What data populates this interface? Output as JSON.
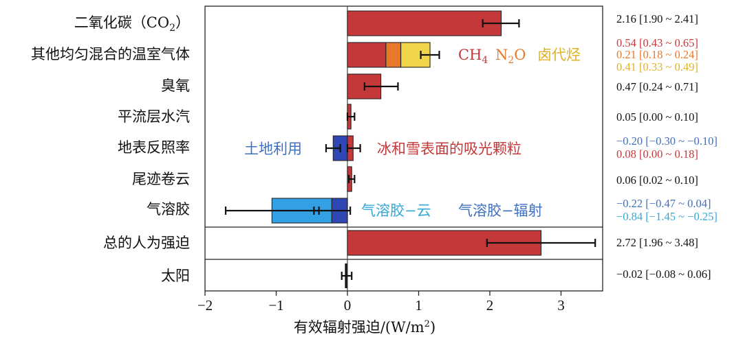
{
  "chart_data": {
    "type": "bar",
    "orientation": "horizontal",
    "xlabel": "有效辐射强迫/(W/m²)",
    "xlim": [
      -2,
      3.5
    ],
    "x_ticks": [
      -2,
      -1,
      0,
      1,
      2,
      3
    ],
    "x_tick_labels": [
      "−2",
      "−1",
      "0",
      "1",
      "2",
      "3"
    ],
    "colors": {
      "co2": "#c4383a",
      "ch4": "#c4383a",
      "n2o": "#e8792b",
      "halo": "#f0d44a",
      "ozone": "#c4383a",
      "strat": "#c4383a",
      "landuse": "#2f47b5",
      "snow": "#c4383a",
      "contrail": "#c4383a",
      "aer_cloud": "#2f47b5",
      "aer_rad": "#33a0e6",
      "total": "#c4383a",
      "solar": "#111111",
      "text_black": "#111111",
      "text_red": "#c4383a",
      "text_orange": "#e8792b",
      "text_yellow": "#dfb227",
      "text_blue": "#3f6fbf",
      "text_cyan": "#33a7d7"
    },
    "rows": [
      {
        "label": "二氧化碳(CO₂)",
        "values_text": [
          "2.16 [1.90 ~ 2.41]"
        ]
      },
      {
        "label": "其他均匀混合的温室气体",
        "values_text": [
          "0.54 [0.43 ~ 0.65]",
          "0.21 [0.18 ~ 0.24]",
          "0.41 [0.33 ~ 0.49]"
        ]
      },
      {
        "label": "臭氧",
        "values_text": [
          "0.47 [0.24 ~ 0.71]"
        ]
      },
      {
        "label": "平流层水汽",
        "values_text": [
          "0.05 [0.00 ~ 0.10]"
        ]
      },
      {
        "label": "地表反照率",
        "values_text": [
          "−0.20 [−0.30 ~ −0.10]",
          "0.08 [0.00 ~ 0.18]"
        ]
      },
      {
        "label": "尾迹卷云",
        "values_text": [
          "0.06 [0.02 ~ 0.10]"
        ]
      },
      {
        "label": "气溶胶",
        "values_text": [
          "−0.22 [−0.47 ~ 0.04]",
          "−0.84 [−1.45 ~ −0.25]"
        ]
      },
      {
        "label": "总的人为强迫",
        "values_text": [
          "2.72 [1.96 ~ 3.48]"
        ]
      },
      {
        "label": "太阳",
        "values_text": [
          "−0.02 [−0.08 ~ 0.06]"
        ]
      }
    ],
    "series": [
      {
        "row": 0,
        "key": "co2",
        "value": 2.16,
        "low": 1.9,
        "high": 2.41,
        "stack_from": 0
      },
      {
        "row": 1,
        "key": "ch4",
        "value": 0.54,
        "stack_from": 0
      },
      {
        "row": 1,
        "key": "n2o",
        "value": 0.21,
        "stack_from": 0.54
      },
      {
        "row": 1,
        "key": "halo",
        "value": 0.41,
        "stack_from": 0.75,
        "total_low": 1.03,
        "total_high": 1.29,
        "total": 1.16
      },
      {
        "row": 2,
        "key": "ozone",
        "value": 0.47,
        "low": 0.24,
        "high": 0.71,
        "stack_from": 0
      },
      {
        "row": 3,
        "key": "strat",
        "value": 0.05,
        "low": 0.0,
        "high": 0.1,
        "stack_from": 0
      },
      {
        "row": 4,
        "key": "landuse",
        "value": -0.2,
        "low": -0.3,
        "high": -0.1,
        "stack_from": 0
      },
      {
        "row": 4,
        "key": "snow",
        "value": 0.08,
        "low": 0.0,
        "high": 0.18,
        "stack_from": 0
      },
      {
        "row": 5,
        "key": "contrail",
        "value": 0.06,
        "low": 0.02,
        "high": 0.1,
        "stack_from": 0
      },
      {
        "row": 6,
        "key": "aer_cloud",
        "value": -0.22,
        "low": -0.47,
        "high": 0.04,
        "stack_from": 0
      },
      {
        "row": 6,
        "key": "aer_rad",
        "value": -0.84,
        "stack_from": -0.22,
        "total": -1.06,
        "total_low": -1.71,
        "total_high": -0.4
      },
      {
        "row": 7,
        "key": "total",
        "value": 2.72,
        "low": 1.96,
        "high": 3.48,
        "stack_from": 0
      },
      {
        "row": 8,
        "key": "solar",
        "value": -0.02,
        "low": -0.08,
        "high": 0.06,
        "stack_from": 0
      }
    ],
    "annotations": {
      "ghg_ch4": "CH",
      "ghg_ch4_sub": "4",
      "ghg_n2o": "N",
      "ghg_n2o_sub": "2",
      "ghg_n2o_tail": "O",
      "ghg_halo": "卤代烃",
      "albedo_land": "土地利用",
      "albedo_snow": "冰和雪表面的吸光颗粒",
      "aerosol_cloud": "气溶胶−云",
      "aerosol_rad": "气溶胶−辐射"
    }
  }
}
